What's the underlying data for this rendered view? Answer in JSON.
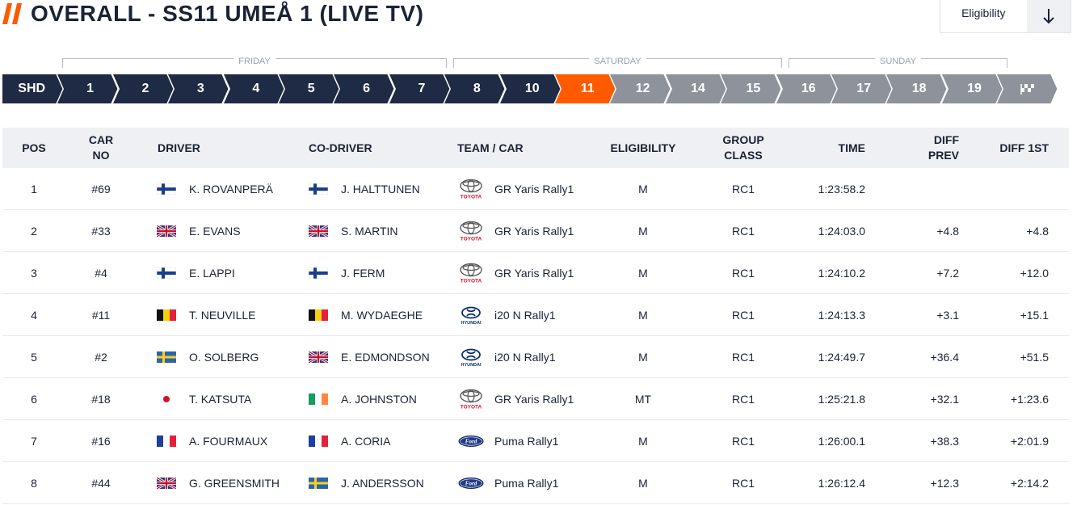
{
  "header": {
    "title": "OVERALL - SS11 UMEÅ 1 (LIVE TV)",
    "eligibility_label": "Eligibility",
    "accent_color": "#ff5a00"
  },
  "days": [
    {
      "label": "FRIDAY"
    },
    {
      "label": "SATURDAY"
    },
    {
      "label": "SUNDAY"
    }
  ],
  "stages": [
    {
      "label": "SHD",
      "state": "done"
    },
    {
      "label": "1",
      "state": "done"
    },
    {
      "label": "2",
      "state": "done"
    },
    {
      "label": "3",
      "state": "done"
    },
    {
      "label": "4",
      "state": "done"
    },
    {
      "label": "5",
      "state": "done"
    },
    {
      "label": "6",
      "state": "done"
    },
    {
      "label": "7",
      "state": "done"
    },
    {
      "label": "8",
      "state": "done"
    },
    {
      "label": "10",
      "state": "done"
    },
    {
      "label": "11",
      "state": "active"
    },
    {
      "label": "12",
      "state": "upcoming"
    },
    {
      "label": "14",
      "state": "upcoming"
    },
    {
      "label": "15",
      "state": "upcoming"
    },
    {
      "label": "16",
      "state": "upcoming"
    },
    {
      "label": "17",
      "state": "upcoming"
    },
    {
      "label": "18",
      "state": "upcoming"
    },
    {
      "label": "19",
      "state": "upcoming"
    },
    {
      "label": "",
      "state": "finish",
      "icon": "checkered-flag-icon"
    }
  ],
  "table": {
    "headers": {
      "pos": "POS",
      "car_no_1": "CAR",
      "car_no_2": "NO",
      "driver": "DRIVER",
      "co_driver": "CO-DRIVER",
      "team_car": "TEAM / CAR",
      "eligibility": "ELIGIBILITY",
      "group_1": "GROUP",
      "group_2": "CLASS",
      "time": "TIME",
      "diff_prev_1": "DIFF",
      "diff_prev_2": "PREV",
      "diff_1st": "DIFF 1ST"
    },
    "rows": [
      {
        "pos": "1",
        "car": "#69",
        "driver": "K. ROVANPERÄ",
        "driver_flag": "finland",
        "codriver": "J. HALTTUNEN",
        "codriver_flag": "finland",
        "brand": "toyota",
        "brand_text": "TOYOTA",
        "car_model": "GR Yaris Rally1",
        "elig": "M",
        "group": "RC1",
        "time": "1:23:58.2",
        "diff_prev": "",
        "diff_1st": ""
      },
      {
        "pos": "2",
        "car": "#33",
        "driver": "E. EVANS",
        "driver_flag": "uk",
        "codriver": "S. MARTIN",
        "codriver_flag": "uk",
        "brand": "toyota",
        "brand_text": "TOYOTA",
        "car_model": "GR Yaris Rally1",
        "elig": "M",
        "group": "RC1",
        "time": "1:24:03.0",
        "diff_prev": "+4.8",
        "diff_1st": "+4.8"
      },
      {
        "pos": "3",
        "car": "#4",
        "driver": "E. LAPPI",
        "driver_flag": "finland",
        "codriver": "J. FERM",
        "codriver_flag": "finland",
        "brand": "toyota",
        "brand_text": "TOYOTA",
        "car_model": "GR Yaris Rally1",
        "elig": "M",
        "group": "RC1",
        "time": "1:24:10.2",
        "diff_prev": "+7.2",
        "diff_1st": "+12.0"
      },
      {
        "pos": "4",
        "car": "#11",
        "driver": "T. NEUVILLE",
        "driver_flag": "belgium",
        "codriver": "M. WYDAEGHE",
        "codriver_flag": "belgium",
        "brand": "hyundai",
        "brand_text": "HYUNDAI",
        "car_model": "i20 N Rally1",
        "elig": "M",
        "group": "RC1",
        "time": "1:24:13.3",
        "diff_prev": "+3.1",
        "diff_1st": "+15.1"
      },
      {
        "pos": "5",
        "car": "#2",
        "driver": "O. SOLBERG",
        "driver_flag": "sweden",
        "codriver": "E. EDMONDSON",
        "codriver_flag": "uk",
        "brand": "hyundai",
        "brand_text": "HYUNDAI",
        "car_model": "i20 N Rally1",
        "elig": "M",
        "group": "RC1",
        "time": "1:24:49.7",
        "diff_prev": "+36.4",
        "diff_1st": "+51.5"
      },
      {
        "pos": "6",
        "car": "#18",
        "driver": "T. KATSUTA",
        "driver_flag": "japan",
        "codriver": "A. JOHNSTON",
        "codriver_flag": "ireland",
        "brand": "toyota",
        "brand_text": "TOYOTA",
        "car_model": "GR Yaris Rally1",
        "elig": "MT",
        "group": "RC1",
        "time": "1:25:21.8",
        "diff_prev": "+32.1",
        "diff_1st": "+1:23.6"
      },
      {
        "pos": "7",
        "car": "#16",
        "driver": "A. FOURMAUX",
        "driver_flag": "france",
        "codriver": "A. CORIA",
        "codriver_flag": "france",
        "brand": "ford",
        "brand_text": "Ford",
        "car_model": "Puma Rally1",
        "elig": "M",
        "group": "RC1",
        "time": "1:26:00.1",
        "diff_prev": "+38.3",
        "diff_1st": "+2:01.9"
      },
      {
        "pos": "8",
        "car": "#44",
        "driver": "G. GREENSMITH",
        "driver_flag": "uk",
        "codriver": "J. ANDERSSON",
        "codriver_flag": "sweden",
        "brand": "ford",
        "brand_text": "Ford",
        "car_model": "Puma Rally1",
        "elig": "M",
        "group": "RC1",
        "time": "1:26:12.4",
        "diff_prev": "+12.3",
        "diff_1st": "+2:14.2"
      }
    ]
  }
}
